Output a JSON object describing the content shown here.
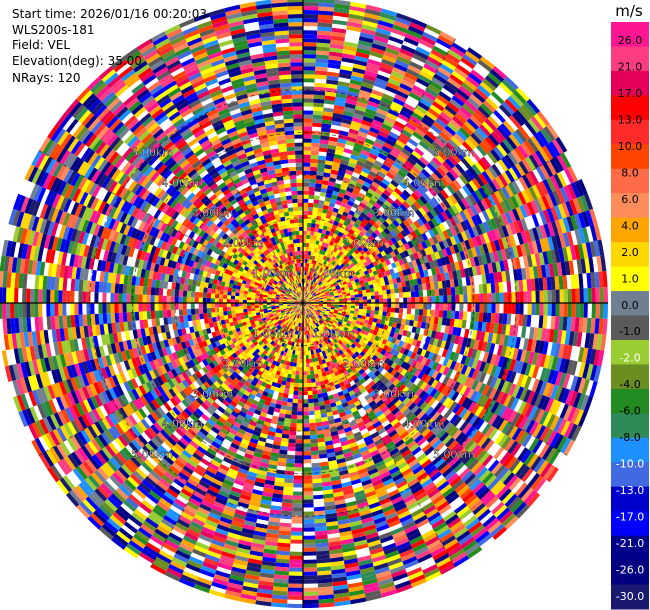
{
  "info": {
    "start_time": "Start time: 2026/01/16 00:20:03",
    "instrument": "WLS200s-181",
    "field": "Field: VEL",
    "elevation": "Elevation(deg): 35.00",
    "nrays": "NRays: 120"
  },
  "chart_data": {
    "type": "heatmap",
    "projection": "polar PPI",
    "nrays": 120,
    "range_rings_km": [
      1,
      2,
      3,
      4,
      5
    ],
    "range_ring_labels": [
      "1.00km",
      "2.00km",
      "3.00km",
      "4.00km",
      "5.00km"
    ],
    "grid": true,
    "colorbar": {
      "unit": "m/s",
      "placement": "right",
      "ticks": [
        "26.0",
        "21.0",
        "17.0",
        "13.0",
        "10.0",
        "8.0",
        "6.0",
        "4.0",
        "2.0",
        "1.0",
        "0.0",
        "-1.0",
        "-2.0",
        "-4.0",
        "-6.0",
        "-8.0",
        "-10.0",
        "-13.0",
        "-17.0",
        "-21.0",
        "-26.0",
        "-30.0"
      ],
      "colors": [
        "#ff1493",
        "#ff3c82",
        "#e6005a",
        "#ff0000",
        "#ff2a2a",
        "#ff4500",
        "#ff6b47",
        "#ff8c5a",
        "#ffa500",
        "#ffd700",
        "#ffff00",
        "#708090",
        "#5a5a5a",
        "#9acd32",
        "#6b8e23",
        "#228b22",
        "#2e8b57",
        "#1e90ff",
        "#4169e1",
        "#0000cd",
        "#0000ff",
        "#00008b",
        "#000080",
        "#191970"
      ]
    }
  }
}
